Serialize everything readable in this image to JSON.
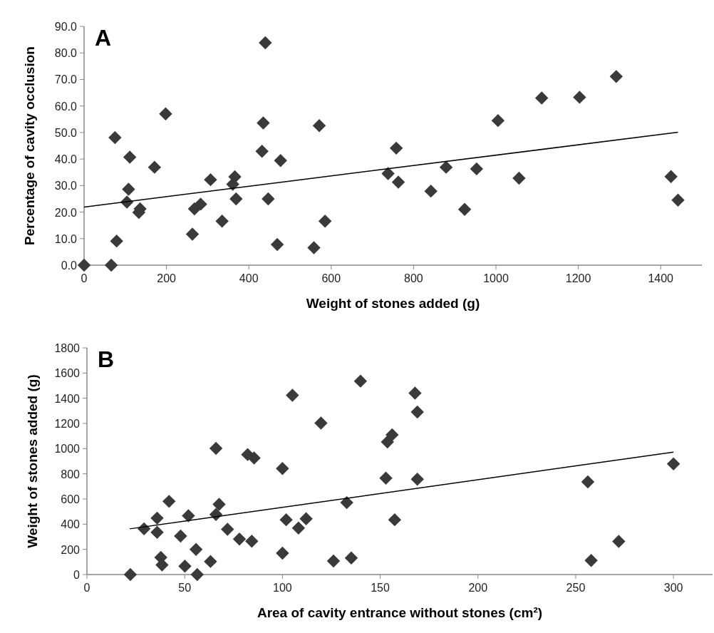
{
  "chart_data": [
    {
      "type": "scatter",
      "title": "A",
      "xlabel": "Weight of stones added (g)",
      "ylabel": "Percentage of cavity occlusion",
      "x": [
        0,
        66,
        75,
        79,
        111,
        108,
        104,
        136,
        133,
        171,
        198,
        263,
        268,
        283,
        307,
        335,
        361,
        366,
        369,
        432,
        435,
        440,
        447,
        469,
        477,
        558,
        571,
        585,
        738,
        758,
        763,
        842,
        879,
        924,
        953,
        1005,
        1056,
        1111,
        1203,
        1292,
        1425,
        1442
      ],
      "series": [
        {
          "color": "#3a3a3a",
          "marker": "diamond",
          "values": [
            0,
            0,
            48.1,
            9.1,
            40.7,
            28.6,
            23.8,
            21.2,
            19.9,
            36.9,
            57.0,
            11.7,
            21.2,
            23.0,
            32.2,
            16.6,
            30.5,
            33.3,
            25.0,
            42.9,
            53.6,
            83.8,
            25.0,
            7.8,
            39.4,
            6.6,
            52.6,
            16.6,
            34.5,
            44.1,
            31.3,
            27.9,
            36.9,
            21.0,
            36.3,
            54.5,
            32.8,
            63.0,
            63.3,
            71.1,
            33.4,
            24.5
          ]
        },
        {
          "type": "line",
          "color": "#000000",
          "x": [
            0,
            1442
          ],
          "values": [
            21.9,
            50.1
          ]
        }
      ],
      "xlim": [
        0,
        1500
      ],
      "xticks": [
        0,
        200,
        400,
        600,
        800,
        1000,
        1200,
        1400
      ],
      "ylim": [
        0,
        90
      ],
      "yticks": [
        {
          "value": 0,
          "label": "0.0"
        },
        {
          "value": 10,
          "label": "10.0"
        },
        {
          "value": 20,
          "label": "20.0"
        },
        {
          "value": 30,
          "label": "30.0"
        },
        {
          "value": 40,
          "label": "40.0"
        },
        {
          "value": 50,
          "label": "50.0"
        },
        {
          "value": 60,
          "label": "60.0"
        },
        {
          "value": 70,
          "label": "70.0"
        },
        {
          "value": 80,
          "label": "80.0"
        },
        {
          "value": 90,
          "label": "90.0"
        }
      ],
      "grid": false
    },
    {
      "type": "scatter",
      "title": "B",
      "xlabel": "Area of cavity entrance without stones (cm²)",
      "ylabel": "Weight of stones added (g)",
      "x": [
        22.2,
        29.2,
        35.9,
        35.9,
        37.8,
        38.4,
        42.0,
        47.9,
        50.1,
        51.9,
        55.8,
        56.4,
        63.2,
        66.0,
        66.0,
        67.6,
        71.9,
        78.0,
        82.2,
        84.3,
        85.5,
        100.0,
        100.0,
        101.9,
        105.1,
        108.2,
        112.1,
        119.7,
        126.1,
        132.9,
        135.2,
        139.9,
        152.9,
        153.7,
        156.1,
        157.4,
        167.8,
        169.0,
        169.0,
        256.2,
        257.9,
        272.0,
        300.0
      ],
      "series": [
        {
          "color": "#3a3a3a",
          "marker": "diamond",
          "values": [
            0,
            363,
            448,
            335,
            136,
            76,
            581,
            306,
            66,
            467,
            199,
            0,
            104,
            1002,
            477,
            558,
            359,
            282,
            953,
            265,
            925,
            842,
            170,
            435,
            1424,
            369,
            443,
            1203,
            108,
            571,
            132,
            1536,
            766,
            1053,
            1110,
            435,
            1441,
            1291,
            757,
            736,
            112,
            263,
            879
          ]
        },
        {
          "type": "line",
          "color": "#000000",
          "x": [
            21.9,
            300
          ],
          "values": [
            363,
            972
          ]
        }
      ],
      "xlim": [
        0,
        320
      ],
      "xticks": [
        0,
        50,
        100,
        150,
        200,
        250,
        300
      ],
      "ylim": [
        0,
        1800
      ],
      "yticks": [
        0,
        200,
        400,
        600,
        800,
        1000,
        1200,
        1400,
        1600,
        1800
      ],
      "grid": false
    }
  ]
}
